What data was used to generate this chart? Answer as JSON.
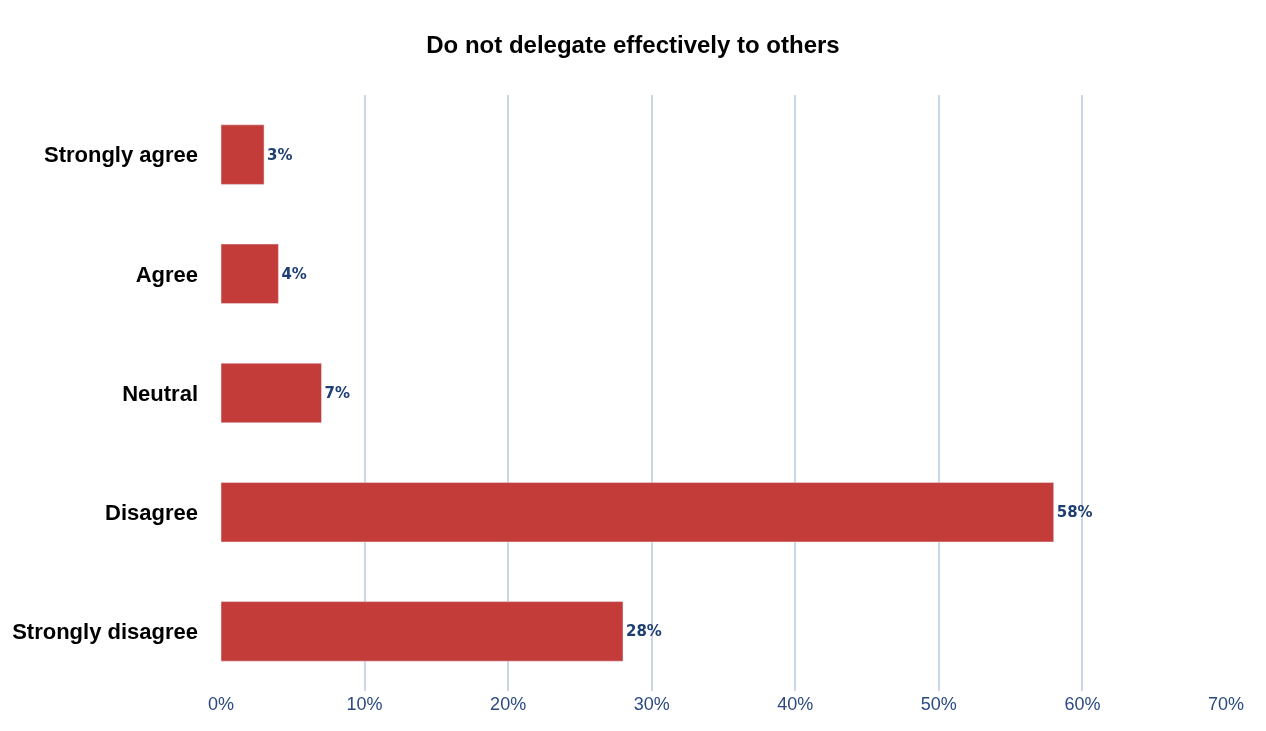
{
  "chart_data": {
    "type": "bar",
    "orientation": "horizontal",
    "title": "Do not delegate effectively to others",
    "categories": [
      "Strongly agree",
      "Agree",
      "Neutral",
      "Disagree",
      "Strongly disagree"
    ],
    "values": [
      3,
      4,
      7,
      58,
      28
    ],
    "value_labels": [
      "3%",
      "4%",
      "7%",
      "58%",
      "28%"
    ],
    "color": "#c43c3a",
    "xlim": [
      0,
      70
    ],
    "xticks": [
      {
        "value": 0,
        "label": "0%"
      },
      {
        "value": 10,
        "label": "10%"
      },
      {
        "value": 20,
        "label": "20%"
      },
      {
        "value": 30,
        "label": "30%"
      },
      {
        "value": 40,
        "label": "40%"
      },
      {
        "value": 50,
        "label": "50%"
      },
      {
        "value": 60,
        "label": "60%"
      },
      {
        "value": 70,
        "label": "70%"
      }
    ],
    "grid": "x",
    "legend": false
  }
}
